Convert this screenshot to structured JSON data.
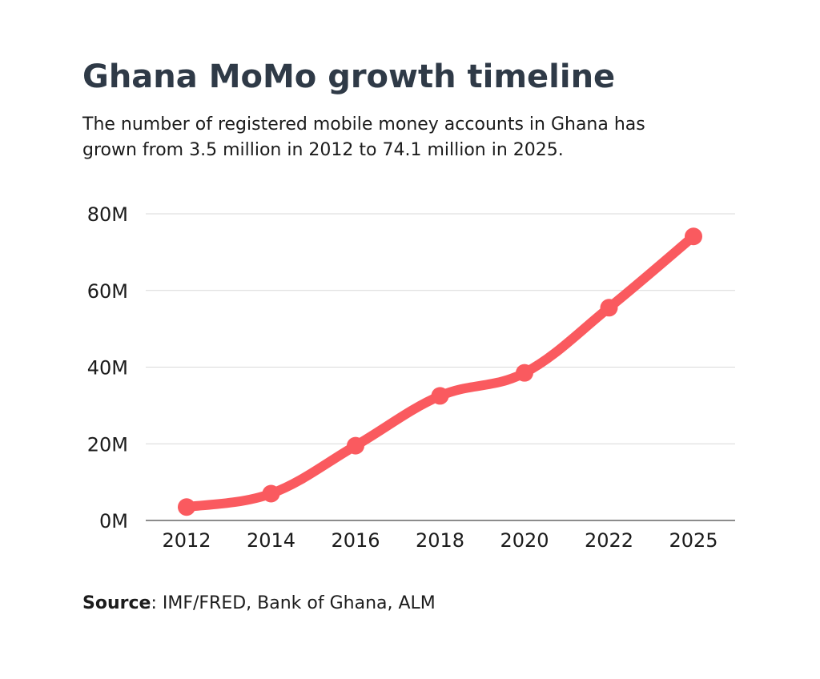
{
  "header": {
    "title": "Ghana MoMo growth timeline",
    "subtitle": "The number of registered mobile money accounts in Ghana has grown from 3.5 million in 2012 to 74.1 million in 2025."
  },
  "footer": {
    "source_label": "Source",
    "source_text": ": IMF/FRED, Bank of Ghana, ALM"
  },
  "chart_data": {
    "type": "line",
    "title": "Ghana MoMo growth timeline",
    "subtitle": "The number of registered mobile money accounts in Ghana has grown from 3.5 million in 2012 to 74.1 million in 2025.",
    "xlabel": "",
    "ylabel": "",
    "categories": [
      "2012",
      "2014",
      "2016",
      "2018",
      "2020",
      "2022",
      "2025"
    ],
    "series": [
      {
        "values": [
          3.5,
          7.0,
          19.5,
          32.5,
          38.5,
          55.5,
          74.1
        ]
      }
    ],
    "ylim": [
      0,
      80
    ],
    "y_ticks": [
      0,
      20,
      40,
      60,
      80
    ],
    "y_tick_labels": [
      "0M",
      "20M",
      "40M",
      "60M",
      "80M"
    ],
    "y_unit": "million accounts",
    "grid": true,
    "legend": "none",
    "line_color": "#fa5a5f",
    "grid_color": "#d9d9d9",
    "axis_color": "#666666"
  }
}
